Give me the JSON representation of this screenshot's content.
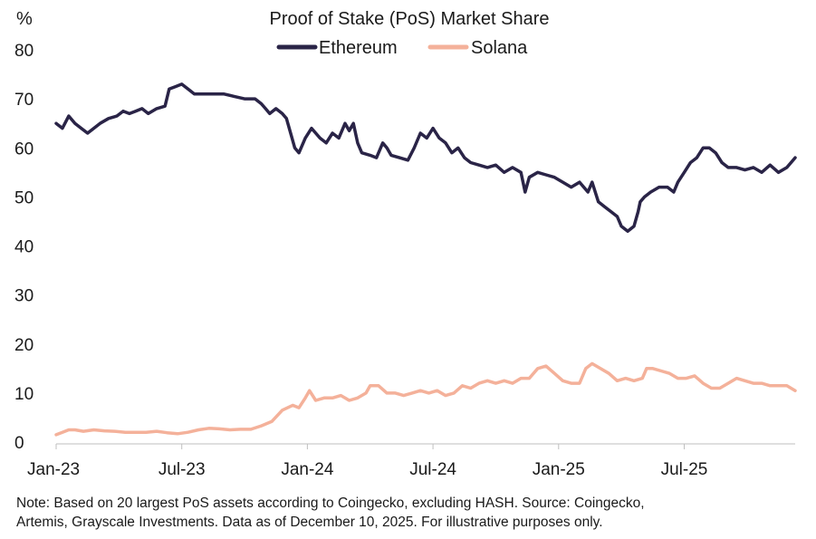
{
  "chart_data": {
    "type": "line",
    "title": "Proof of Stake (PoS) Market Share",
    "ylabel": "%",
    "xlabel": "",
    "ylim": [
      0,
      80
    ],
    "yticks": [
      0,
      10,
      20,
      30,
      40,
      50,
      60,
      70,
      80
    ],
    "xlim": [
      0,
      35.3
    ],
    "x_unit": "months since Jan-2023",
    "xticks": [
      {
        "label": "Jan-23",
        "x": 0
      },
      {
        "label": "Jul-23",
        "x": 6
      },
      {
        "label": "Jan-24",
        "x": 12
      },
      {
        "label": "Jul-24",
        "x": 18
      },
      {
        "label": "Jan-25",
        "x": 24
      },
      {
        "label": "Jul-25",
        "x": 30
      }
    ],
    "legend_position": "top-center",
    "grid": false,
    "series": [
      {
        "name": "Ethereum",
        "color": "#2a2447",
        "points": [
          [
            0.0,
            65
          ],
          [
            0.3,
            64
          ],
          [
            0.6,
            66.5
          ],
          [
            0.9,
            65
          ],
          [
            1.2,
            64
          ],
          [
            1.5,
            63
          ],
          [
            1.8,
            64
          ],
          [
            2.1,
            65
          ],
          [
            2.5,
            66
          ],
          [
            2.9,
            66.5
          ],
          [
            3.2,
            67.5
          ],
          [
            3.5,
            67
          ],
          [
            3.8,
            67.5
          ],
          [
            4.1,
            68
          ],
          [
            4.4,
            67
          ],
          [
            4.8,
            68
          ],
          [
            5.2,
            68.5
          ],
          [
            5.4,
            72
          ],
          [
            5.7,
            72.5
          ],
          [
            6.0,
            73
          ],
          [
            6.3,
            72
          ],
          [
            6.6,
            71
          ],
          [
            7.0,
            71
          ],
          [
            7.5,
            71
          ],
          [
            8.0,
            71
          ],
          [
            8.5,
            70.5
          ],
          [
            9.0,
            70
          ],
          [
            9.5,
            70
          ],
          [
            9.8,
            69
          ],
          [
            10.0,
            68
          ],
          [
            10.2,
            67
          ],
          [
            10.5,
            68
          ],
          [
            10.8,
            67
          ],
          [
            11.0,
            66
          ],
          [
            11.2,
            63
          ],
          [
            11.4,
            60
          ],
          [
            11.6,
            59
          ],
          [
            11.9,
            62
          ],
          [
            12.2,
            64
          ],
          [
            12.6,
            62
          ],
          [
            12.9,
            61
          ],
          [
            13.2,
            63
          ],
          [
            13.5,
            62
          ],
          [
            13.8,
            65
          ],
          [
            14.0,
            63.5
          ],
          [
            14.2,
            65
          ],
          [
            14.4,
            61
          ],
          [
            14.6,
            59
          ],
          [
            15.0,
            58.5
          ],
          [
            15.3,
            58
          ],
          [
            15.6,
            61
          ],
          [
            15.8,
            60
          ],
          [
            16.0,
            58.5
          ],
          [
            16.4,
            58
          ],
          [
            16.8,
            57.5
          ],
          [
            17.1,
            60
          ],
          [
            17.4,
            63
          ],
          [
            17.7,
            62
          ],
          [
            18.0,
            64
          ],
          [
            18.3,
            62
          ],
          [
            18.6,
            61
          ],
          [
            18.9,
            59
          ],
          [
            19.2,
            60
          ],
          [
            19.5,
            58
          ],
          [
            19.8,
            57
          ],
          [
            20.2,
            56.5
          ],
          [
            20.6,
            56
          ],
          [
            21.0,
            56.5
          ],
          [
            21.4,
            55
          ],
          [
            21.8,
            56
          ],
          [
            22.2,
            55
          ],
          [
            22.4,
            51
          ],
          [
            22.6,
            54
          ],
          [
            23.0,
            55
          ],
          [
            23.4,
            54.5
          ],
          [
            23.8,
            54
          ],
          [
            24.2,
            53
          ],
          [
            24.6,
            52
          ],
          [
            25.0,
            53
          ],
          [
            25.4,
            51
          ],
          [
            25.6,
            53
          ],
          [
            25.9,
            49
          ],
          [
            26.2,
            48
          ],
          [
            26.5,
            47
          ],
          [
            26.8,
            46
          ],
          [
            27.0,
            44
          ],
          [
            27.3,
            43
          ],
          [
            27.6,
            44
          ],
          [
            27.8,
            47
          ],
          [
            27.9,
            49
          ],
          [
            28.1,
            50
          ],
          [
            28.4,
            51
          ],
          [
            28.8,
            52
          ],
          [
            29.2,
            52
          ],
          [
            29.5,
            51
          ],
          [
            29.7,
            53
          ],
          [
            30.0,
            55
          ],
          [
            30.3,
            57
          ],
          [
            30.6,
            58
          ],
          [
            30.9,
            60
          ],
          [
            31.2,
            60
          ],
          [
            31.5,
            59
          ],
          [
            31.8,
            57
          ],
          [
            32.1,
            56
          ],
          [
            32.5,
            56
          ],
          [
            32.9,
            55.5
          ],
          [
            33.3,
            56
          ],
          [
            33.7,
            55
          ],
          [
            34.1,
            56.5
          ],
          [
            34.5,
            55
          ],
          [
            34.9,
            56
          ],
          [
            35.1,
            57
          ],
          [
            35.3,
            58
          ]
        ]
      },
      {
        "name": "Solana",
        "color": "#f4b19a",
        "points": [
          [
            0.0,
            1.5
          ],
          [
            0.3,
            2
          ],
          [
            0.6,
            2.5
          ],
          [
            0.9,
            2.5
          ],
          [
            1.3,
            2.2
          ],
          [
            1.8,
            2.5
          ],
          [
            2.3,
            2.3
          ],
          [
            2.8,
            2.2
          ],
          [
            3.3,
            2
          ],
          [
            3.8,
            2
          ],
          [
            4.3,
            2
          ],
          [
            4.8,
            2.2
          ],
          [
            5.3,
            1.9
          ],
          [
            5.8,
            1.7
          ],
          [
            6.3,
            2
          ],
          [
            6.8,
            2.5
          ],
          [
            7.3,
            2.8
          ],
          [
            7.8,
            2.7
          ],
          [
            8.3,
            2.5
          ],
          [
            8.8,
            2.6
          ],
          [
            9.3,
            2.6
          ],
          [
            9.8,
            3.3
          ],
          [
            10.3,
            4.2
          ],
          [
            10.8,
            6.5
          ],
          [
            11.3,
            7.5
          ],
          [
            11.6,
            7
          ],
          [
            11.9,
            9
          ],
          [
            12.1,
            10.5
          ],
          [
            12.4,
            8.5
          ],
          [
            12.8,
            9
          ],
          [
            13.2,
            9
          ],
          [
            13.6,
            9.5
          ],
          [
            14.0,
            8.5
          ],
          [
            14.4,
            9
          ],
          [
            14.8,
            10
          ],
          [
            15.0,
            11.5
          ],
          [
            15.4,
            11.5
          ],
          [
            15.8,
            10
          ],
          [
            16.2,
            10
          ],
          [
            16.6,
            9.5
          ],
          [
            17.0,
            10
          ],
          [
            17.4,
            10.5
          ],
          [
            17.8,
            10
          ],
          [
            18.2,
            10.5
          ],
          [
            18.6,
            9.5
          ],
          [
            19.0,
            10
          ],
          [
            19.4,
            11.5
          ],
          [
            19.8,
            11
          ],
          [
            20.2,
            12
          ],
          [
            20.6,
            12.5
          ],
          [
            21.0,
            12
          ],
          [
            21.4,
            12.5
          ],
          [
            21.8,
            12
          ],
          [
            22.2,
            13
          ],
          [
            22.6,
            13
          ],
          [
            23.0,
            15
          ],
          [
            23.4,
            15.5
          ],
          [
            23.8,
            14
          ],
          [
            24.2,
            12.5
          ],
          [
            24.6,
            12
          ],
          [
            25.0,
            12
          ],
          [
            25.3,
            15
          ],
          [
            25.6,
            16
          ],
          [
            26.0,
            15
          ],
          [
            26.4,
            14
          ],
          [
            26.8,
            12.5
          ],
          [
            27.2,
            13
          ],
          [
            27.6,
            12.5
          ],
          [
            28.0,
            13
          ],
          [
            28.2,
            15
          ],
          [
            28.5,
            15
          ],
          [
            28.9,
            14.5
          ],
          [
            29.3,
            14
          ],
          [
            29.7,
            13
          ],
          [
            30.1,
            13
          ],
          [
            30.5,
            13.5
          ],
          [
            30.9,
            12
          ],
          [
            31.3,
            11
          ],
          [
            31.7,
            11
          ],
          [
            32.1,
            12
          ],
          [
            32.5,
            13
          ],
          [
            32.9,
            12.5
          ],
          [
            33.3,
            12
          ],
          [
            33.7,
            12
          ],
          [
            34.1,
            11.5
          ],
          [
            34.5,
            11.5
          ],
          [
            34.9,
            11.5
          ],
          [
            35.3,
            10.5
          ]
        ]
      }
    ]
  },
  "note": {
    "line1": "Note: Based on 20 largest PoS assets according to Coingecko, excluding HASH. Source: Coingecko,",
    "line2": "Artemis, Grayscale Investments. Data as of December 10, 2025. For illustrative purposes only."
  }
}
